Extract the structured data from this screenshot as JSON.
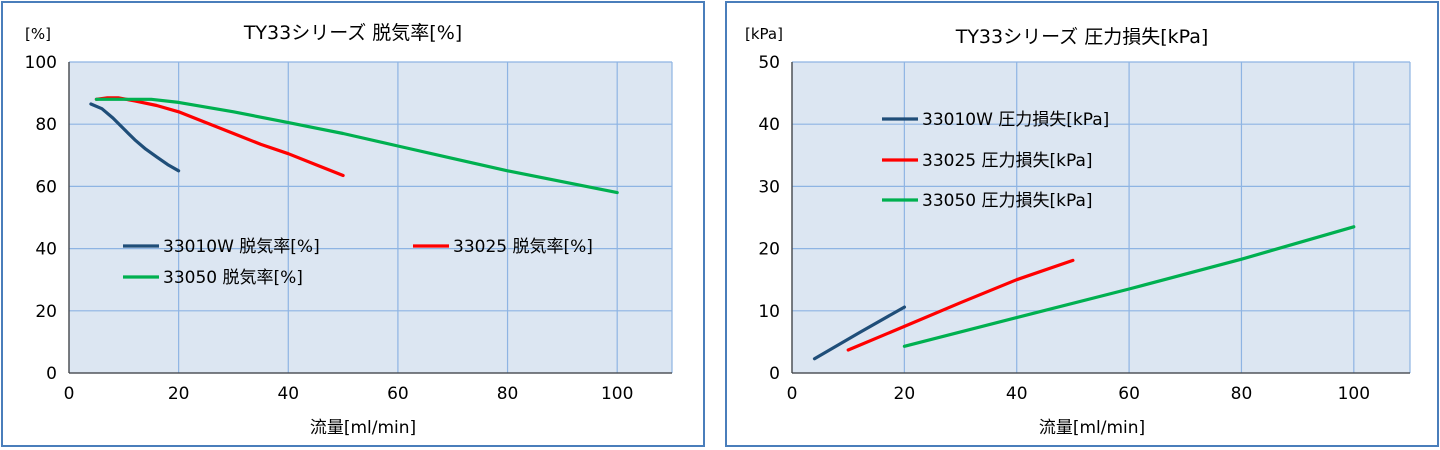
{
  "chart_data": [
    {
      "type": "line",
      "title": "TY33シリーズ 脱気率[%]",
      "ylabel": "[%]",
      "xlabel": "流量[ml/min]",
      "xlim": [
        0,
        110
      ],
      "ylim": [
        0,
        100
      ],
      "xticks": [
        0,
        20,
        40,
        60,
        80,
        100
      ],
      "yticks": [
        0,
        20,
        40,
        60,
        80,
        100
      ],
      "grid": true,
      "legend": "inside-lower-left",
      "series": [
        {
          "name": "33010W 脱気率[%]",
          "color": "#1f4e79",
          "x": [
            4,
            6,
            8,
            10,
            12,
            14,
            16,
            18,
            20
          ],
          "y": [
            86.5,
            85,
            82,
            78.5,
            75,
            72,
            69.5,
            67,
            65
          ]
        },
        {
          "name": "33025 脱気率[%]",
          "color": "#ff0000",
          "x": [
            5,
            7,
            9,
            12,
            16,
            20,
            25,
            30,
            35,
            40,
            45,
            50
          ],
          "y": [
            88,
            88.5,
            88.5,
            87.5,
            86,
            84,
            80.5,
            77,
            73.5,
            70.5,
            67,
            63.5
          ]
        },
        {
          "name": "33050 脱気率[%]",
          "color": "#00b050",
          "x": [
            5,
            10,
            15,
            20,
            30,
            40,
            50,
            60,
            70,
            80,
            90,
            100
          ],
          "y": [
            88,
            88,
            88,
            87,
            84,
            80.5,
            77,
            73,
            69,
            65,
            61.5,
            58
          ]
        }
      ]
    },
    {
      "type": "line",
      "title": "TY33シリーズ 圧力損失[kPa]",
      "ylabel": "[kPa]",
      "xlabel": "流量[ml/min]",
      "xlim": [
        0,
        110
      ],
      "ylim": [
        0,
        50
      ],
      "xticks": [
        0,
        20,
        40,
        60,
        80,
        100
      ],
      "yticks": [
        0,
        10,
        20,
        30,
        40,
        50
      ],
      "grid": true,
      "legend": "inside-upper-left",
      "series": [
        {
          "name": "33010W 圧力損失[kPa]",
          "color": "#1f4e79",
          "x": [
            4,
            12,
            20
          ],
          "y": [
            2.3,
            6.5,
            10.6
          ]
        },
        {
          "name": "33025 圧力損失[kPa]",
          "color": "#ff0000",
          "x": [
            10,
            20,
            30,
            40,
            50
          ],
          "y": [
            3.7,
            7.5,
            11.3,
            15,
            18.1
          ]
        },
        {
          "name": "33050 圧力損失[kPa]",
          "color": "#00b050",
          "x": [
            20,
            40,
            60,
            80,
            100
          ],
          "y": [
            4.3,
            8.9,
            13.5,
            18.3,
            23.5
          ]
        }
      ]
    }
  ]
}
